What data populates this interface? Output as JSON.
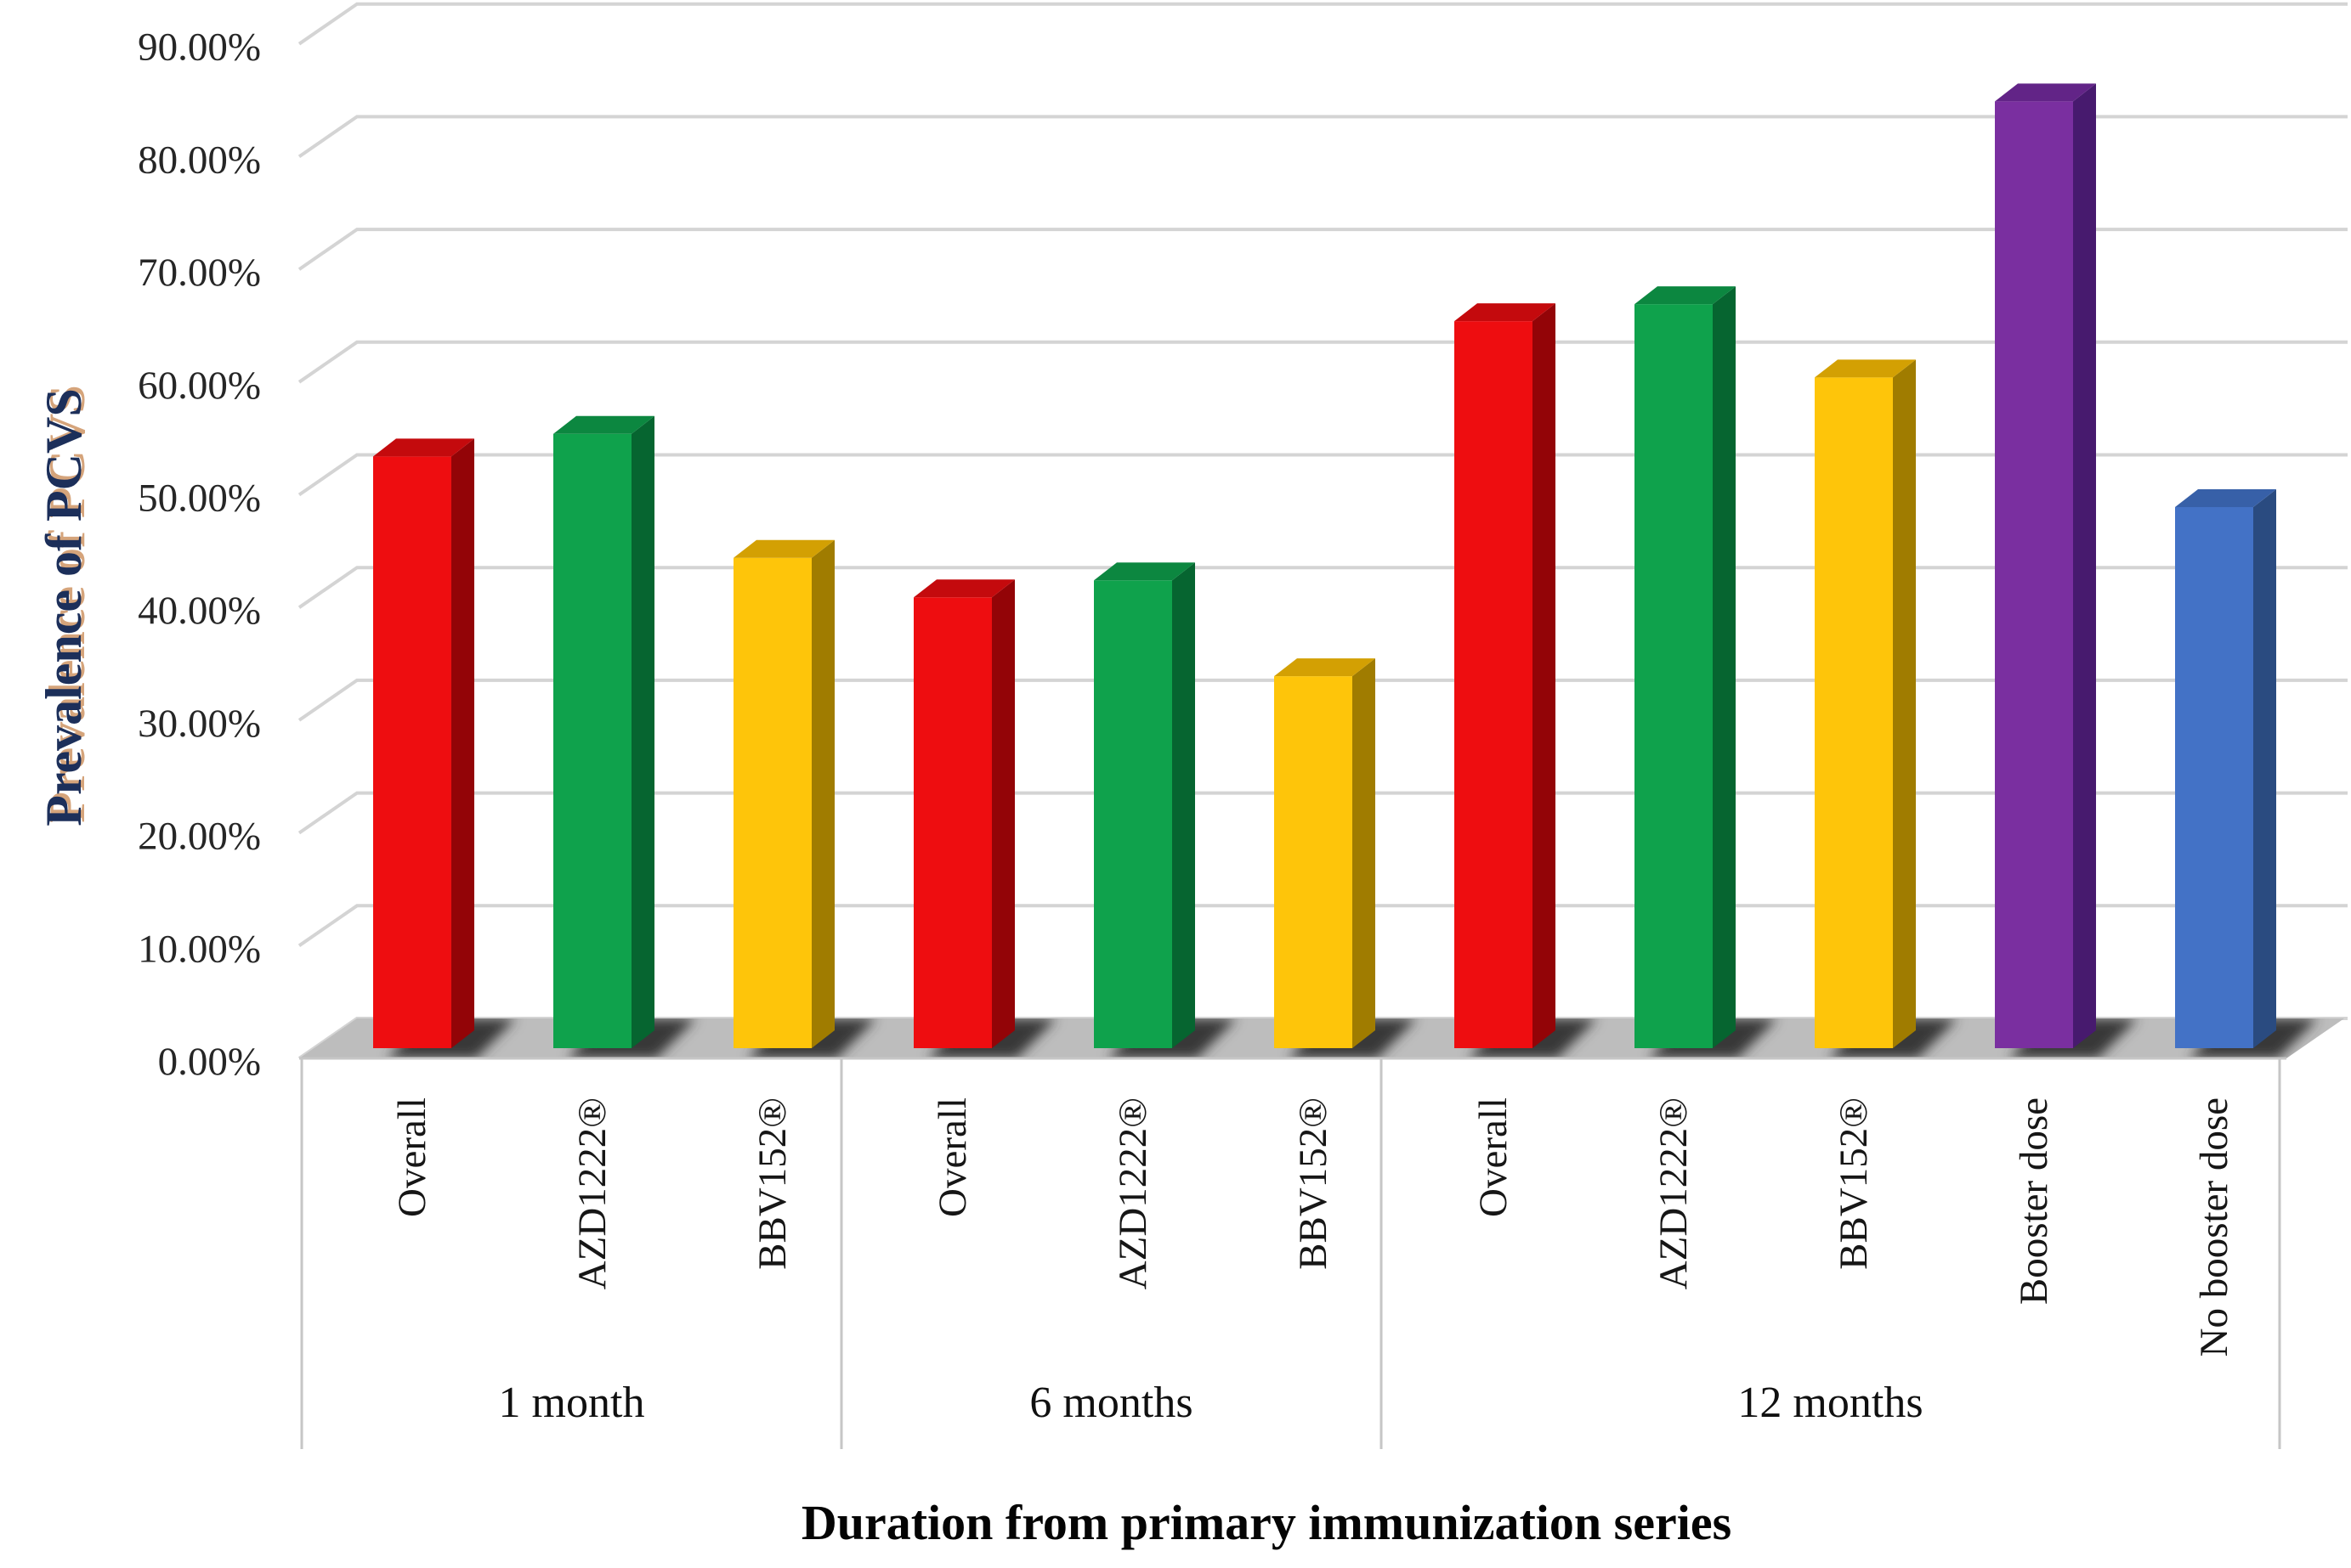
{
  "chart_data": {
    "type": "bar",
    "style": "3d-clustered-column",
    "title": "",
    "xlabel": "Duration from primary immunization series",
    "ylabel": "Prevalence of PCVS",
    "value_unit": "%",
    "ylim": [
      0,
      90
    ],
    "grid": true,
    "legend_position": "none",
    "y_ticks": [
      {
        "value": 0,
        "label": "0.00%"
      },
      {
        "value": 10,
        "label": "10.00%"
      },
      {
        "value": 20,
        "label": "20.00%"
      },
      {
        "value": 30,
        "label": "30.00%"
      },
      {
        "value": 40,
        "label": "40.00%"
      },
      {
        "value": 50,
        "label": "50.00%"
      },
      {
        "value": 60,
        "label": "60.00%"
      },
      {
        "value": 70,
        "label": "70.00%"
      },
      {
        "value": 80,
        "label": "80.00%"
      },
      {
        "value": 90,
        "label": "90.00%"
      }
    ],
    "groups": [
      {
        "label": "1 month",
        "bars": [
          {
            "category": "Overall",
            "value": 52.5,
            "color": "red"
          },
          {
            "category": "AZD1222®",
            "value": 54.5,
            "color": "green"
          },
          {
            "category": "BBV152®",
            "value": 43.5,
            "color": "gold"
          }
        ]
      },
      {
        "label": "6 months",
        "bars": [
          {
            "category": "Overall",
            "value": 40.0,
            "color": "red"
          },
          {
            "category": "AZD1222®",
            "value": 41.5,
            "color": "green"
          },
          {
            "category": "BBV152®",
            "value": 33.0,
            "color": "gold"
          }
        ]
      },
      {
        "label": "12 months",
        "bars": [
          {
            "category": "Overall",
            "value": 64.5,
            "color": "red"
          },
          {
            "category": "AZD1222®",
            "value": 66.0,
            "color": "green"
          },
          {
            "category": "BBV152®",
            "value": 59.5,
            "color": "gold"
          },
          {
            "category": "Booster dose",
            "value": 84.0,
            "color": "purple"
          },
          {
            "category": "No booster dose",
            "value": 48.0,
            "color": "blue"
          }
        ]
      }
    ],
    "palette": {
      "red": {
        "front": "#ee0d10",
        "top": "#c40a0d",
        "side": "#930407"
      },
      "green": {
        "front": "#0fa24c",
        "top": "#0c8740",
        "side": "#066530"
      },
      "gold": {
        "front": "#fec50a",
        "top": "#d3a003",
        "side": "#a07c00"
      },
      "purple": {
        "front": "#7a2fa0",
        "top": "#622487",
        "side": "#471a6e"
      },
      "blue": {
        "front": "#4372c6",
        "top": "#3760a8",
        "side": "#2a4b80"
      }
    },
    "grid_color": "#d4d4d4",
    "floor_color": "#bdbdbd",
    "floor_shadow_color": "#383838",
    "background_color": "#ffffff"
  }
}
